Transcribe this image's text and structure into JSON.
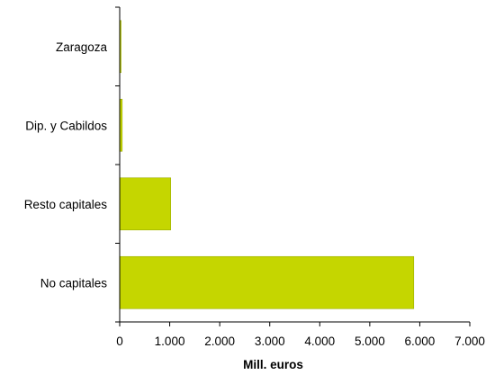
{
  "chart_data": {
    "type": "bar",
    "orientation": "horizontal",
    "categories": [
      "Zaragoza",
      "Dip. y Cabildos",
      "Resto capitales",
      "No capitales"
    ],
    "values": [
      20,
      50,
      1020,
      5880
    ],
    "xlabel": "Mill. euros",
    "ylabel": "",
    "xlim": [
      0,
      7000
    ],
    "xticks": [
      0,
      1000,
      2000,
      3000,
      4000,
      5000,
      6000,
      7000
    ],
    "xtick_labels": [
      "0",
      "1.000",
      "2.000",
      "3.000",
      "4.000",
      "5.000",
      "6.000",
      "7.000"
    ],
    "grid": false,
    "legend": "none",
    "bar_color": "#c5d600",
    "bar_stroke": "#9aad00"
  }
}
